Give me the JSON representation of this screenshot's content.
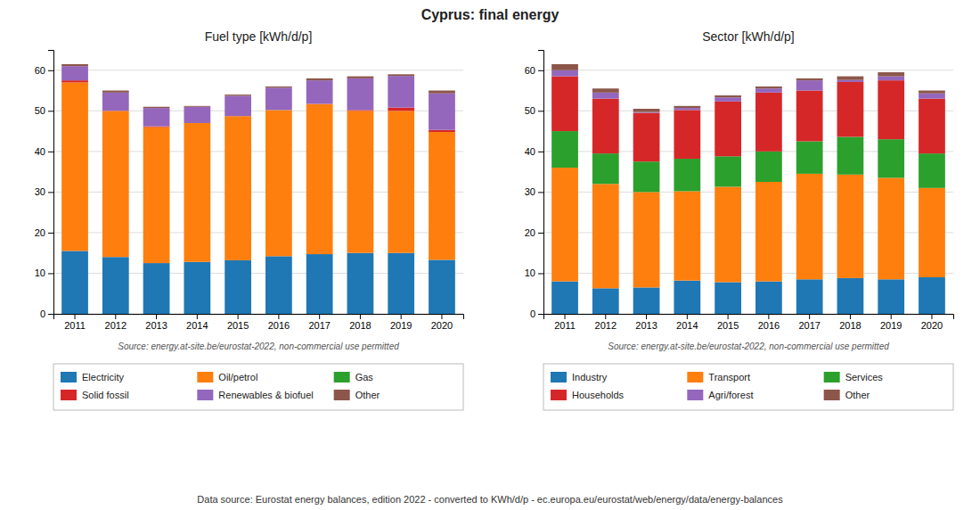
{
  "title": "Cyprus: final energy",
  "annotations": [
    "Data source: Eurostat energy balances, edition 2022 - converted to KWh/d/p - ec.europa.eu/eurostat/web/energy/data/energy-balances"
  ],
  "chart_data": [
    {
      "type": "bar",
      "stacked": true,
      "grid": true,
      "legend": "bottom",
      "title": "Fuel type [kWh/d/p]",
      "annotations": [
        "Source: energy.at-site.be/eurostat-2022, non-commercial use permitted"
      ],
      "categories": [
        "2011",
        "2012",
        "2013",
        "2014",
        "2015",
        "2016",
        "2017",
        "2018",
        "2019",
        "2020"
      ],
      "series": [
        {
          "name": "Electricity",
          "values": [
            15.5,
            14.0,
            12.5,
            12.8,
            13.2,
            14.2,
            14.7,
            15.0,
            15.0,
            13.3
          ]
        },
        {
          "name": "Oil/petrol",
          "values": [
            41.5,
            36.0,
            33.5,
            34.2,
            35.5,
            36.0,
            37.0,
            35.0,
            35.0,
            31.5
          ]
        },
        {
          "name": "Gas",
          "values": [
            0.0,
            0.0,
            0.0,
            0.0,
            0.0,
            0.0,
            0.0,
            0.0,
            0.0,
            0.0
          ]
        },
        {
          "name": "Solid fossil",
          "values": [
            0.5,
            0.0,
            0.2,
            0.0,
            0.0,
            0.0,
            0.0,
            0.2,
            0.8,
            0.5
          ]
        },
        {
          "name": "Renewables & biofuel",
          "values": [
            3.5,
            4.5,
            4.5,
            4.0,
            5.0,
            5.5,
            5.8,
            7.8,
            7.8,
            9.0
          ]
        },
        {
          "name": "Other",
          "values": [
            0.5,
            0.5,
            0.3,
            0.2,
            0.3,
            0.3,
            0.5,
            0.5,
            0.4,
            0.7
          ]
        }
      ],
      "ylim": [
        0,
        65
      ],
      "yticks": [
        0,
        10,
        20,
        30,
        40,
        50,
        60
      ]
    },
    {
      "type": "bar",
      "stacked": true,
      "grid": true,
      "legend": "bottom",
      "title": "Sector [kWh/d/p]",
      "annotations": [
        "Source: energy.at-site.be/eurostat-2022, non-commercial use permitted"
      ],
      "categories": [
        "2011",
        "2012",
        "2013",
        "2014",
        "2015",
        "2016",
        "2017",
        "2018",
        "2019",
        "2020"
      ],
      "series": [
        {
          "name": "Industry",
          "values": [
            8.0,
            6.3,
            6.5,
            8.2,
            7.8,
            8.0,
            8.5,
            8.8,
            8.5,
            9.0
          ]
        },
        {
          "name": "Transport",
          "values": [
            28.0,
            25.7,
            23.5,
            22.0,
            23.5,
            24.5,
            26.0,
            25.5,
            25.0,
            22.0
          ]
        },
        {
          "name": "Services",
          "values": [
            9.0,
            7.5,
            7.5,
            8.0,
            7.5,
            7.5,
            8.0,
            9.3,
            9.5,
            8.5
          ]
        },
        {
          "name": "Households",
          "values": [
            13.5,
            13.5,
            12.0,
            12.0,
            13.5,
            14.5,
            12.5,
            13.5,
            14.5,
            13.5
          ]
        },
        {
          "name": "Agri/forest",
          "values": [
            1.5,
            1.5,
            0.2,
            0.5,
            1.0,
            1.0,
            2.5,
            0.5,
            1.0,
            1.3
          ]
        },
        {
          "name": "Other",
          "values": [
            1.5,
            1.0,
            0.8,
            0.5,
            0.5,
            0.5,
            0.5,
            0.9,
            1.0,
            0.7
          ]
        }
      ],
      "ylim": [
        0,
        65
      ],
      "yticks": [
        0,
        10,
        20,
        30,
        40,
        50,
        60
      ]
    }
  ]
}
